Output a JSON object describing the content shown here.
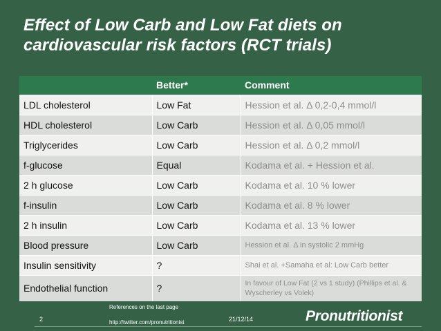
{
  "slide": {
    "title_line1": "Effect of Low Carb and Low Fat diets on",
    "title_line2": "cardiovascular risk factors (RCT trials)"
  },
  "table": {
    "headers": [
      "",
      "Better*",
      "Comment"
    ],
    "rows": [
      [
        "LDL cholesterol",
        "Low Fat",
        "Hession et al. Δ  0,2-0,4 mmol/l"
      ],
      [
        "HDL cholesterol",
        "Low Carb",
        "Hession et al. Δ 0,05 mmol/l"
      ],
      [
        "Triglycerides",
        "Low Carb",
        "Hession et al. Δ 0,2 mmol/l"
      ],
      [
        "f-glucose",
        "Equal",
        "Kodama et al. + Hession et al."
      ],
      [
        "2 h glucose",
        "Low Carb",
        "Kodama et al. 10 % lower"
      ],
      [
        "f-insulin",
        "Low Carb",
        "Kodama et al. 8 % lower"
      ],
      [
        "2 h insulin",
        "Low Carb",
        "Kodama et al. 13 % lower"
      ],
      [
        "Blood pressure",
        "Low Carb",
        "Hession et al. Δ in systolic  2 mmHg"
      ],
      [
        "Insulin sensitivity",
        "?",
        "Shai et al. +Samaha et al: Low Carb better"
      ],
      [
        "Endothelial function",
        "?",
        "In favour of Low Fat (2 vs 1 study) (Phillips et al. & Wyscherley vs Volek)"
      ]
    ]
  },
  "footer": {
    "references": "References on the last page",
    "url": "http://twitter.com/pronutritionist",
    "page_number": "2",
    "date": "21/12/14",
    "logo_text": "Pronutritionist"
  },
  "colors": {
    "background": "#356146",
    "header_row": "#2e7a4f",
    "row_light": "#f0f0ee",
    "row_dark": "#d9dcd8"
  }
}
